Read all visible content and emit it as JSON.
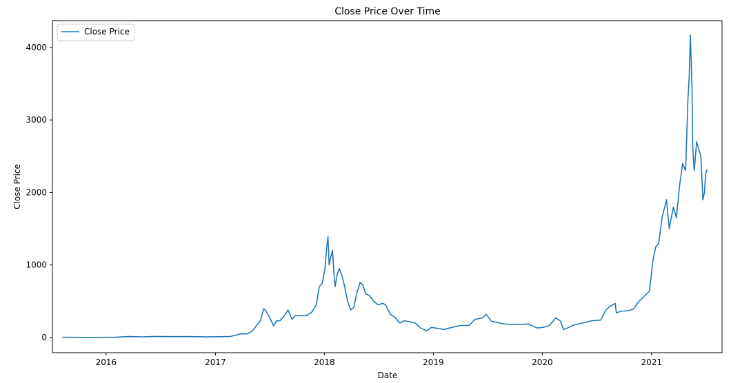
{
  "chart_data": {
    "type": "line",
    "title": "Close Price Over Time",
    "xlabel": "Date",
    "ylabel": "Close Price",
    "x_ticks": [
      "2016",
      "2017",
      "2018",
      "2019",
      "2020",
      "2021"
    ],
    "y_ticks": [
      0,
      1000,
      2000,
      3000,
      4000
    ],
    "xlim": [
      "2015-07-05",
      "2021-08-25"
    ],
    "ylim": [
      -210,
      4370
    ],
    "grid": false,
    "legend": "top-left",
    "series": [
      {
        "name": "Close Price",
        "color": "#1f77b4",
        "points": [
          [
            "2015-08-07",
            2.8
          ],
          [
            "2015-10-01",
            0.7
          ],
          [
            "2015-12-01",
            0.9
          ],
          [
            "2016-02-01",
            3
          ],
          [
            "2016-03-15",
            12
          ],
          [
            "2016-05-01",
            9
          ],
          [
            "2016-06-15",
            14
          ],
          [
            "2016-08-01",
            11
          ],
          [
            "2016-10-01",
            12
          ],
          [
            "2016-12-01",
            8
          ],
          [
            "2017-01-15",
            10
          ],
          [
            "2017-02-20",
            14
          ],
          [
            "2017-03-10",
            30
          ],
          [
            "2017-03-25",
            50
          ],
          [
            "2017-04-15",
            48
          ],
          [
            "2017-05-05",
            90
          ],
          [
            "2017-05-20",
            170
          ],
          [
            "2017-06-01",
            230
          ],
          [
            "2017-06-12",
            400
          ],
          [
            "2017-06-20",
            360
          ],
          [
            "2017-07-01",
            280
          ],
          [
            "2017-07-15",
            160
          ],
          [
            "2017-07-25",
            230
          ],
          [
            "2017-08-05",
            230
          ],
          [
            "2017-08-20",
            300
          ],
          [
            "2017-09-01",
            380
          ],
          [
            "2017-09-15",
            250
          ],
          [
            "2017-09-25",
            300
          ],
          [
            "2017-10-15",
            300
          ],
          [
            "2017-11-01",
            300
          ],
          [
            "2017-11-20",
            350
          ],
          [
            "2017-12-05",
            450
          ],
          [
            "2017-12-15",
            700
          ],
          [
            "2017-12-25",
            750
          ],
          [
            "2018-01-03",
            950
          ],
          [
            "2018-01-09",
            1250
          ],
          [
            "2018-01-13",
            1390
          ],
          [
            "2018-01-17",
            1000
          ],
          [
            "2018-01-22",
            1100
          ],
          [
            "2018-01-28",
            1200
          ],
          [
            "2018-02-02",
            900
          ],
          [
            "2018-02-06",
            700
          ],
          [
            "2018-02-12",
            860
          ],
          [
            "2018-02-20",
            950
          ],
          [
            "2018-03-01",
            850
          ],
          [
            "2018-03-10",
            700
          ],
          [
            "2018-03-20",
            500
          ],
          [
            "2018-03-30",
            380
          ],
          [
            "2018-04-10",
            420
          ],
          [
            "2018-04-20",
            620
          ],
          [
            "2018-05-01",
            760
          ],
          [
            "2018-05-10",
            720
          ],
          [
            "2018-05-20",
            600
          ],
          [
            "2018-06-01",
            580
          ],
          [
            "2018-06-15",
            500
          ],
          [
            "2018-06-30",
            450
          ],
          [
            "2018-07-15",
            470
          ],
          [
            "2018-07-25",
            450
          ],
          [
            "2018-08-10",
            320
          ],
          [
            "2018-08-25",
            280
          ],
          [
            "2018-09-10",
            200
          ],
          [
            "2018-09-25",
            230
          ],
          [
            "2018-10-10",
            220
          ],
          [
            "2018-11-01",
            200
          ],
          [
            "2018-11-20",
            130
          ],
          [
            "2018-12-10",
            90
          ],
          [
            "2018-12-25",
            140
          ],
          [
            "2019-01-15",
            125
          ],
          [
            "2019-02-05",
            110
          ],
          [
            "2019-03-01",
            135
          ],
          [
            "2019-04-01",
            165
          ],
          [
            "2019-05-01",
            165
          ],
          [
            "2019-05-20",
            250
          ],
          [
            "2019-06-15",
            270
          ],
          [
            "2019-06-27",
            320
          ],
          [
            "2019-07-15",
            220
          ],
          [
            "2019-08-01",
            210
          ],
          [
            "2019-08-20",
            190
          ],
          [
            "2019-09-15",
            180
          ],
          [
            "2019-10-15",
            180
          ],
          [
            "2019-11-15",
            185
          ],
          [
            "2019-12-15",
            130
          ],
          [
            "2020-01-05",
            140
          ],
          [
            "2020-01-25",
            165
          ],
          [
            "2020-02-15",
            270
          ],
          [
            "2020-03-01",
            230
          ],
          [
            "2020-03-12",
            110
          ],
          [
            "2020-03-25",
            130
          ],
          [
            "2020-04-15",
            170
          ],
          [
            "2020-05-15",
            200
          ],
          [
            "2020-06-15",
            230
          ],
          [
            "2020-07-15",
            240
          ],
          [
            "2020-08-01",
            380
          ],
          [
            "2020-08-15",
            430
          ],
          [
            "2020-09-01",
            470
          ],
          [
            "2020-09-05",
            340
          ],
          [
            "2020-09-20",
            360
          ],
          [
            "2020-10-15",
            370
          ],
          [
            "2020-11-01",
            390
          ],
          [
            "2020-11-20",
            500
          ],
          [
            "2020-12-10",
            580
          ],
          [
            "2020-12-25",
            640
          ],
          [
            "2021-01-05",
            1050
          ],
          [
            "2021-01-15",
            1250
          ],
          [
            "2021-01-25",
            1300
          ],
          [
            "2021-02-05",
            1650
          ],
          [
            "2021-02-20",
            1900
          ],
          [
            "2021-03-01",
            1500
          ],
          [
            "2021-03-15",
            1800
          ],
          [
            "2021-03-25",
            1650
          ],
          [
            "2021-04-05",
            2100
          ],
          [
            "2021-04-15",
            2400
          ],
          [
            "2021-04-25",
            2300
          ],
          [
            "2021-05-03",
            3300
          ],
          [
            "2021-05-07",
            3600
          ],
          [
            "2021-05-11",
            4170
          ],
          [
            "2021-05-16",
            3500
          ],
          [
            "2021-05-19",
            2600
          ],
          [
            "2021-05-24",
            2300
          ],
          [
            "2021-06-01",
            2700
          ],
          [
            "2021-06-08",
            2600
          ],
          [
            "2021-06-15",
            2500
          ],
          [
            "2021-06-22",
            1900
          ],
          [
            "2021-06-27",
            2000
          ],
          [
            "2021-07-01",
            2250
          ],
          [
            "2021-07-06",
            2320
          ]
        ]
      }
    ]
  }
}
